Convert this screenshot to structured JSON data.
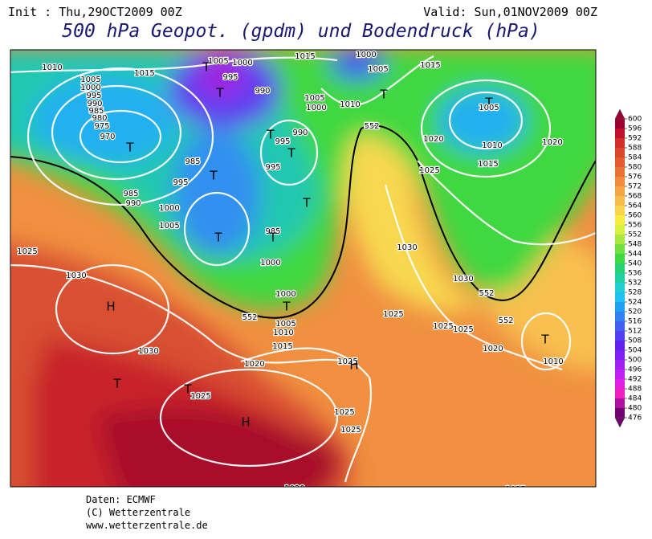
{
  "header": {
    "init": "Init : Thu,29OCT2009 00Z",
    "valid": "Valid: Sun,01NOV2009 00Z",
    "title": "500 hPa Geopot. (gpdm) und Bodendruck (hPa)"
  },
  "footer": [
    "Daten: ECMWF",
    "(C) Wetterzentrale",
    "www.wetterzentrale.de"
  ],
  "colorbar": {
    "ticks": [
      600,
      596,
      592,
      588,
      584,
      580,
      576,
      572,
      568,
      564,
      560,
      556,
      552,
      548,
      544,
      540,
      536,
      532,
      528,
      524,
      520,
      516,
      512,
      508,
      504,
      500,
      496,
      492,
      488,
      484,
      480,
      476
    ],
    "colors": [
      "#9a0030",
      "#c0102a",
      "#d03028",
      "#d84828",
      "#e05c2c",
      "#e87434",
      "#f08c3c",
      "#f4a444",
      "#f8bc4c",
      "#f8d450",
      "#f8ec40",
      "#d8f040",
      "#a8e840",
      "#70e040",
      "#40d840",
      "#28d070",
      "#20d0a0",
      "#20d0d0",
      "#20c0f0",
      "#20a0f0",
      "#3080f0",
      "#4060f0",
      "#5040f0",
      "#6020f0",
      "#8020f0",
      "#a020f0",
      "#c020f0",
      "#e020e0",
      "#f020c0",
      "#b010a0",
      "#700070"
    ]
  },
  "map_labels": [
    1010,
    1015,
    1005,
    1000,
    995,
    990,
    985,
    980,
    975,
    970,
    "T",
    985,
    990,
    1005,
    1000,
    "T",
    995,
    "T",
    990,
    "T",
    990,
    995,
    "T",
    985,
    "T",
    995,
    995,
    1000,
    1005,
    "T",
    985,
    "T",
    1000,
    1015,
    1000,
    1005,
    "T",
    1005,
    1000,
    1010,
    1015,
    "T",
    1005,
    1010,
    1015,
    1020,
    1020,
    1025,
    1025,
    1030,
    "H",
    1030,
    "T",
    "T",
    1025,
    "H",
    1020,
    1025,
    "H",
    1025,
    1025,
    1025,
    1020,
    "T",
    1015,
    1030,
    1030,
    1025,
    1025,
    1025,
    1020,
    "T",
    1010,
    1000,
    "T",
    1005,
    1010,
    1015,
    552,
    552,
    552,
    552,
    "T"
  ]
}
